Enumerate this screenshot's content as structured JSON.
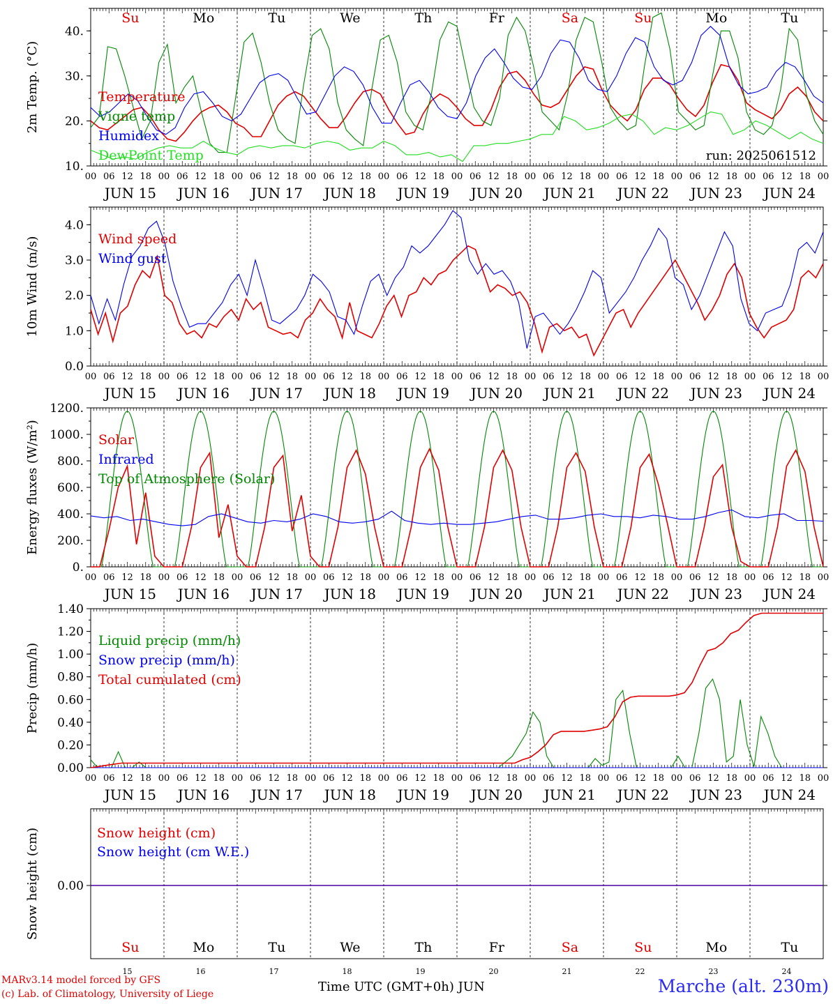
{
  "colors": {
    "red": "#e00000",
    "green": "#008800",
    "blue": "#0000ee",
    "lightgreen": "#22dd22",
    "station": "#2a2af0"
  },
  "days": {
    "weekday": [
      "Su",
      "Mo",
      "Tu",
      "We",
      "Th",
      "Fr",
      "Sa",
      "Su",
      "Mo",
      "Tu"
    ],
    "weekend": [
      true,
      false,
      false,
      false,
      false,
      false,
      true,
      true,
      false,
      false
    ],
    "date_labels": [
      "JUN 15",
      "JUN 16",
      "JUN 17",
      "JUN 18",
      "JUN 19",
      "JUN 20",
      "JUN 21",
      "JUN 22",
      "JUN 23",
      "JUN 24"
    ],
    "day_numbers": [
      "15",
      "16",
      "17",
      "18",
      "19",
      "20",
      "21",
      "22",
      "23",
      "24"
    ],
    "hour_ticks": [
      "00",
      "06",
      "12",
      "18"
    ]
  },
  "footer": {
    "credit_line1": "MARv3.14 model forced by GFS",
    "credit_line2": "(c) Lab. of Climatology, University of Liege",
    "xlabel": "Time UTC (GMT+0h) JUN",
    "station": "Marche (alt. 230m)"
  },
  "chart_data": [
    {
      "type": "line",
      "ylabel": "2m Temp. (°C)",
      "ylim": [
        10,
        45
      ],
      "yticks": [
        "10.",
        "20.",
        "30.",
        "40."
      ],
      "run_label": "run: 2025061512",
      "x_unit": "hours since 2025-06-15 00 UTC, 3-hourly",
      "series": [
        {
          "name": "Temperature",
          "color": "red",
          "values": [
            20,
            18.5,
            18,
            19.5,
            21,
            22.5,
            23,
            21,
            18,
            16,
            15.5,
            17.5,
            20,
            22,
            23,
            23.5,
            22,
            19.5,
            18.5,
            16.5,
            16.5,
            20,
            23.5,
            25.5,
            26.5,
            25.5,
            23,
            20.5,
            18.5,
            18.5,
            21,
            24,
            26.5,
            27,
            26,
            22.5,
            19.5,
            17,
            17.5,
            21.5,
            24.5,
            26,
            25,
            23,
            20.5,
            19,
            19,
            22.5,
            27.5,
            30.5,
            31,
            29,
            26,
            23.5,
            23,
            24,
            27,
            30,
            32,
            31.5,
            27,
            23.5,
            21.5,
            20,
            22.5,
            27,
            29.5,
            29.5,
            28,
            25,
            22.5,
            21,
            23.5,
            28.5,
            32.5,
            32,
            29,
            24,
            22.5,
            21.5,
            20.5,
            22.5,
            26,
            27.5,
            25.5,
            22,
            20
          ]
        },
        {
          "name": "Vigne temp",
          "color": "green",
          "values": [
            18.5,
            21,
            36.5,
            36,
            30,
            23,
            16,
            20,
            33,
            37,
            24,
            27.5,
            30,
            22,
            15,
            13,
            13,
            25,
            37.5,
            39.5,
            33,
            24,
            18,
            16,
            15,
            28,
            39,
            40.5,
            36,
            24,
            18,
            16,
            14.5,
            27,
            38,
            39,
            33,
            22,
            19,
            18,
            26,
            38,
            42,
            41,
            32,
            23,
            20,
            19,
            25,
            39,
            43,
            40,
            32,
            22,
            20,
            18,
            26,
            38,
            43,
            42,
            33,
            23,
            20,
            18,
            19,
            32,
            43,
            44,
            36,
            22,
            20,
            18,
            19,
            30,
            40,
            40,
            34,
            22,
            18,
            17,
            19,
            27,
            40.5,
            38,
            26,
            20,
            17
          ]
        },
        {
          "name": "Humidex",
          "color": "blue",
          "values": [
            23,
            21,
            22,
            24,
            26,
            24.5,
            21,
            18,
            17,
            18.5,
            23,
            26,
            26.5,
            24,
            21,
            20,
            21.5,
            25,
            28.5,
            30,
            30.5,
            29,
            25,
            21.5,
            22,
            26,
            30,
            32,
            31,
            28,
            23,
            19.5,
            19.5,
            24,
            28,
            29,
            26.5,
            23,
            21,
            20.5,
            24,
            30,
            34,
            36,
            33,
            29.5,
            27.5,
            27,
            30,
            35,
            38,
            37.5,
            34,
            29,
            27,
            26.5,
            30,
            35,
            38.5,
            37.5,
            32,
            29,
            28,
            29,
            33,
            39,
            41,
            39,
            32,
            28,
            26,
            26.5,
            27.5,
            31,
            33,
            32,
            29,
            25.5,
            24
          ]
        },
        {
          "name": "DewPoint Temp",
          "color": "lightgreen",
          "values": [
            13.5,
            12.5,
            11.5,
            12,
            11.5,
            13,
            14,
            14.5,
            14,
            14,
            15.5,
            14,
            13,
            12.5,
            14,
            14.5,
            14,
            14.5,
            14.5,
            14,
            15,
            15.5,
            15,
            13.5,
            14,
            14,
            15.5,
            14.5,
            12.5,
            12.5,
            13,
            12,
            12.5,
            11,
            14.5,
            14.5,
            15,
            15,
            15.5,
            16,
            17,
            17,
            21,
            20,
            18,
            18.5,
            19.5,
            21,
            21.5,
            20,
            17,
            18.5,
            18,
            19,
            20.5,
            22,
            21.5,
            17,
            18,
            20,
            19,
            17.5,
            16,
            17.5,
            16,
            15
          ]
        }
      ]
    },
    {
      "type": "line",
      "ylabel": "10m Wind (m/s)",
      "ylim": [
        0,
        4.5
      ],
      "yticks": [
        "0.0",
        "1.0",
        "2.0",
        "3.0",
        "4.0"
      ],
      "x_unit": "hours since 2025-06-15 00 UTC, 3-hourly",
      "series": [
        {
          "name": "Wind speed",
          "color": "red",
          "values": [
            1.6,
            0.9,
            1.5,
            0.7,
            1.5,
            1.7,
            2.3,
            2.7,
            2.5,
            3.1,
            2.0,
            1.8,
            1.2,
            0.9,
            1.0,
            0.8,
            1.2,
            1.1,
            1.4,
            1.6,
            1.3,
            1.9,
            1.6,
            1.8,
            1.1,
            1.0,
            0.9,
            0.95,
            0.8,
            1.3,
            1.5,
            1.9,
            1.6,
            1.4,
            0.8,
            1.8,
            1.0,
            0.9,
            0.8,
            1.2,
            1.7,
            2.0,
            1.4,
            2.0,
            2.1,
            2.5,
            2.3,
            2.6,
            2.7,
            3.0,
            3.2,
            3.4,
            3.3,
            2.7,
            2.1,
            2.3,
            2.2,
            2.0,
            2.1,
            1.8,
            1.2,
            0.4,
            1.1,
            1.2,
            1.0,
            1.1,
            0.8,
            0.9,
            0.3,
            0.7,
            1.1,
            1.5,
            1.6,
            1.1,
            1.5,
            1.8,
            2.1,
            2.4,
            2.7,
            3.0,
            2.6,
            2.2,
            1.8,
            1.3,
            1.6,
            2.0,
            2.6,
            2.9,
            2.5,
            1.5,
            1.1,
            0.8,
            1.1,
            1.2,
            1.3,
            1.6,
            2.5,
            2.7,
            2.5,
            2.9
          ]
        },
        {
          "name": "Wind gust",
          "color": "blue",
          "values": [
            2.0,
            1.2,
            1.9,
            1.3,
            2.3,
            3.1,
            3.4,
            3.9,
            4.1,
            3.5,
            2.4,
            1.7,
            1.1,
            1.2,
            1.2,
            1.5,
            1.8,
            2.3,
            2.6,
            2.0,
            3.0,
            2.2,
            1.3,
            1.2,
            1.4,
            1.6,
            2.0,
            2.6,
            2.4,
            2.1,
            1.4,
            1.3,
            0.9,
            1.7,
            2.4,
            2.6,
            2.0,
            2.5,
            2.8,
            3.4,
            3.2,
            3.4,
            3.7,
            4.0,
            4.4,
            4.2,
            3.0,
            2.6,
            2.9,
            2.6,
            2.7,
            2.4,
            1.8,
            0.5,
            1.4,
            1.5,
            1.2,
            0.9,
            1.2,
            1.6,
            2.1,
            2.7,
            2.5,
            1.5,
            1.8,
            2.1,
            2.5,
            3.0,
            3.4,
            3.9,
            3.6,
            2.5,
            2.3,
            1.6,
            2.0,
            2.6,
            3.2,
            3.8,
            3.4,
            1.9,
            1.2,
            1.0,
            1.5,
            1.6,
            1.7,
            2.3,
            3.3,
            3.5,
            3.2,
            3.8
          ]
        }
      ]
    },
    {
      "type": "line",
      "ylabel": "Energy fluxes (W/m²)",
      "ylim": [
        0,
        1200
      ],
      "yticks": [
        "0.",
        "200.",
        "400.",
        "600.",
        "800.",
        "1000.",
        "1200."
      ],
      "x_unit": "hours since 2025-06-15 00 UTC, 3-hourly",
      "series": [
        {
          "name": "Solar",
          "color": "red",
          "values": [
            0,
            0,
            280,
            600,
            760,
            170,
            560,
            80,
            0,
            0,
            0,
            300,
            750,
            860,
            220,
            470,
            80,
            0,
            0,
            300,
            750,
            840,
            270,
            540,
            80,
            0,
            0,
            300,
            750,
            880,
            700,
            300,
            0,
            0,
            0,
            300,
            750,
            890,
            730,
            300,
            0,
            0,
            0,
            300,
            750,
            880,
            730,
            300,
            0,
            0,
            0,
            300,
            750,
            860,
            720,
            300,
            0,
            0,
            0,
            300,
            750,
            850,
            620,
            320,
            0,
            0,
            0,
            300,
            680,
            770,
            300,
            40,
            0,
            0,
            0,
            300,
            760,
            880,
            720,
            300,
            0
          ]
        },
        {
          "name": "Infrared",
          "color": "blue",
          "values": [
            385,
            370,
            380,
            350,
            360,
            340,
            320,
            310,
            320,
            380,
            400,
            370,
            340,
            330,
            350,
            340,
            360,
            400,
            380,
            340,
            330,
            340,
            360,
            420,
            350,
            330,
            320,
            330,
            320,
            320,
            330,
            340,
            360,
            380,
            390,
            360,
            360,
            370,
            390,
            400,
            380,
            380,
            370,
            390,
            380,
            360,
            360,
            380,
            410,
            430,
            380,
            370,
            390,
            400,
            350,
            350,
            345
          ]
        },
        {
          "name": "Top of Atmosphere (Solar)",
          "color": "green",
          "peak": 1175,
          "day_start_hour": 3.5,
          "day_end_hour": 20.5
        }
      ]
    },
    {
      "type": "line",
      "ylabel": "Precip (mm/h)",
      "ylim": [
        0,
        1.4
      ],
      "yticks": [
        "0.00",
        "0.20",
        "0.40",
        "0.60",
        "0.80",
        "1.00",
        "1.20",
        "1.40"
      ],
      "x_unit": "hours since 2025-06-15 00 UTC, 3-hourly",
      "series": [
        {
          "name": "Liquid precip (mm/h)",
          "color": "green",
          "values": [
            0.07,
            0,
            0,
            0,
            0.14,
            0,
            0,
            0.05,
            0,
            0,
            0,
            0,
            0,
            0,
            0,
            0,
            0,
            0,
            0,
            0,
            0,
            0,
            0,
            0,
            0,
            0,
            0,
            0,
            0,
            0,
            0,
            0,
            0,
            0,
            0,
            0,
            0,
            0,
            0,
            0,
            0,
            0,
            0,
            0,
            0,
            0,
            0,
            0,
            0,
            0,
            0,
            0,
            0,
            0,
            0,
            0,
            0,
            0,
            0,
            0,
            0.05,
            0.1,
            0.2,
            0.3,
            0.49,
            0.4,
            0.1,
            0,
            0,
            0,
            0,
            0,
            0,
            0.08,
            0.02,
            0.05,
            0.6,
            0.68,
            0.3,
            0,
            0,
            0,
            0,
            0,
            0,
            0.1,
            0,
            0,
            0.3,
            0.7,
            0.78,
            0.6,
            0.05,
            0.1,
            0.6,
            0.2,
            0.01,
            0.45,
            0.3,
            0.1,
            0,
            0,
            0,
            0,
            0,
            0,
            0
          ]
        },
        {
          "name": "Snow precip (mm/h)",
          "color": "blue",
          "values": [
            0,
            0
          ]
        },
        {
          "name": "Total cumulated (cm)",
          "color": "red",
          "values": [
            0.0,
            0.01,
            0.02,
            0.03,
            0.04,
            0.04,
            0.04,
            0.04,
            0.04,
            0.04,
            0.04,
            0.04,
            0.04,
            0.04,
            0.04,
            0.04,
            0.04,
            0.04,
            0.04,
            0.04,
            0.04,
            0.04,
            0.04,
            0.04,
            0.04,
            0.04,
            0.04,
            0.04,
            0.04,
            0.04,
            0.04,
            0.04,
            0.04,
            0.04,
            0.04,
            0.04,
            0.04,
            0.04,
            0.04,
            0.04,
            0.04,
            0.04,
            0.04,
            0.04,
            0.04,
            0.04,
            0.04,
            0.04,
            0.04,
            0.04,
            0.04,
            0.04,
            0.04,
            0.04,
            0.04,
            0.04,
            0.07,
            0.09,
            0.14,
            0.2,
            0.29,
            0.32,
            0.32,
            0.32,
            0.32,
            0.33,
            0.34,
            0.36,
            0.45,
            0.58,
            0.62,
            0.63,
            0.63,
            0.63,
            0.63,
            0.63,
            0.64,
            0.66,
            0.75,
            0.9,
            1.03,
            1.05,
            1.1,
            1.18,
            1.21,
            1.28,
            1.34,
            1.36,
            1.36,
            1.36,
            1.36,
            1.36,
            1.36,
            1.36,
            1.36,
            1.36
          ]
        }
      ]
    },
    {
      "type": "line",
      "ylabel": "Snow height (cm)",
      "yticks": [
        "0.00"
      ],
      "series": [
        {
          "name": "Snow height (cm)",
          "color": "red",
          "values": [
            0,
            0
          ]
        },
        {
          "name": "Snow height (cm W.E.)",
          "color": "blue",
          "values": [
            0,
            0
          ]
        }
      ]
    }
  ]
}
